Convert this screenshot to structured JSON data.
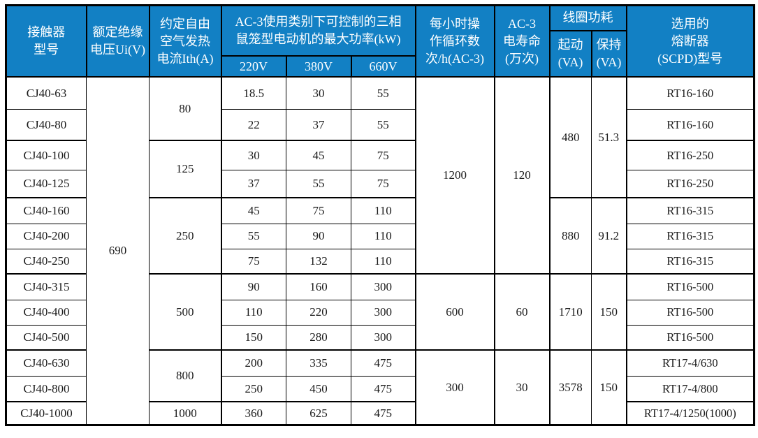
{
  "table": {
    "header": {
      "contactor_model": "接触器\n型号",
      "rated_insulation_voltage": "额定绝缘\n电压Ui(V)",
      "thermal_current": "约定自由\n空气发热\n电流Ith(A)",
      "ac3_power_group": "AC-3使用类别下可控制的三相\n鼠笼型电动机的最大功率(kW)",
      "power_cols": [
        "220V",
        "380V",
        "660V"
      ],
      "cycles_per_hour": "每小时操\n作循环数\n次/h(AC-3)",
      "electrical_life": "AC-3\n电寿命\n(万次)",
      "coil_power_group": "线圈功耗",
      "coil_start": "起动\n(VA)",
      "coil_hold": "保持\n(VA)",
      "fuse": "选用的\n熔断器\n(SCPD)型号"
    },
    "rated_insulation_voltage_value": "690",
    "rows": [
      {
        "model": "CJ40-63",
        "p220": "18.5",
        "p380": "30",
        "p660": "55",
        "fuse": "RT16-160"
      },
      {
        "model": "CJ40-80",
        "p220": "22",
        "p380": "37",
        "p660": "55",
        "fuse": "RT16-160"
      },
      {
        "model": "CJ40-100",
        "p220": "30",
        "p380": "45",
        "p660": "75",
        "fuse": "RT16-250"
      },
      {
        "model": "CJ40-125",
        "p220": "37",
        "p380": "55",
        "p660": "75",
        "fuse": "RT16-250"
      },
      {
        "model": "CJ40-160",
        "p220": "45",
        "p380": "75",
        "p660": "110",
        "fuse": "RT16-315"
      },
      {
        "model": "CJ40-200",
        "p220": "55",
        "p380": "90",
        "p660": "110",
        "fuse": "RT16-315"
      },
      {
        "model": "CJ40-250",
        "p220": "75",
        "p380": "132",
        "p660": "110",
        "fuse": "RT16-315"
      },
      {
        "model": "CJ40-315",
        "p220": "90",
        "p380": "160",
        "p660": "300",
        "fuse": "RT16-500"
      },
      {
        "model": "CJ40-400",
        "p220": "110",
        "p380": "220",
        "p660": "300",
        "fuse": "RT16-500"
      },
      {
        "model": "CJ40-500",
        "p220": "150",
        "p380": "280",
        "p660": "300",
        "fuse": "RT16-500"
      },
      {
        "model": "CJ40-630",
        "p220": "200",
        "p380": "335",
        "p660": "475",
        "fuse": "RT17-4/630"
      },
      {
        "model": "CJ40-800",
        "p220": "250",
        "p380": "450",
        "p660": "475",
        "fuse": "RT17-4/800"
      },
      {
        "model": "CJ40-1000",
        "p220": "360",
        "p380": "625",
        "p660": "475",
        "fuse": "RT17-4/1250(1000)"
      }
    ],
    "ith_groups": [
      {
        "value": "80",
        "rows": 2
      },
      {
        "value": "125",
        "rows": 2
      },
      {
        "value": "250",
        "rows": 3
      },
      {
        "value": "500",
        "rows": 3
      },
      {
        "value": "800",
        "rows": 2
      },
      {
        "value": "1000",
        "rows": 1
      }
    ],
    "cycle_groups": [
      {
        "cycles": "1200",
        "life": "120",
        "rows": 7
      },
      {
        "cycles": "600",
        "life": "60",
        "rows": 3
      },
      {
        "cycles": "300",
        "life": "30",
        "rows": 3
      }
    ],
    "coil_groups": [
      {
        "start": "480",
        "hold": "51.3",
        "rows": 4
      },
      {
        "start": "880",
        "hold": "91.2",
        "rows": 3
      },
      {
        "start": "1710",
        "hold": "150",
        "rows": 3
      },
      {
        "start": "3578",
        "hold": "150",
        "rows": 3
      }
    ]
  },
  "colors": {
    "header_bg": "#1280c4",
    "header_text": "#ffffff",
    "border": "#000000",
    "body_text": "#1a1a1a"
  }
}
